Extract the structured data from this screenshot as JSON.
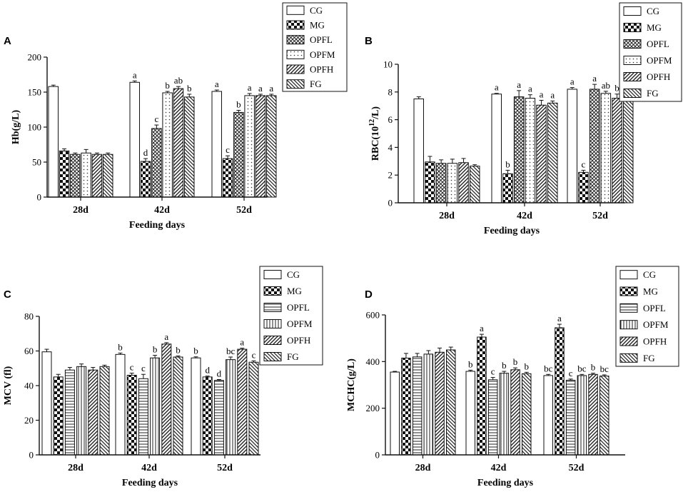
{
  "patterns": [
    "white",
    "checker",
    "crosshatch",
    "dots",
    "diag",
    "backdiag"
  ],
  "patterns_cd": [
    "white",
    "checker",
    "hlines",
    "vlines",
    "diag",
    "backdiag"
  ],
  "chart_data": [
    {
      "type": "bar",
      "panel": "A",
      "ylabel": "Hb(g/L)",
      "xlabel": "Feeding days",
      "categories": [
        "28d",
        "42d",
        "52d"
      ],
      "ylim": [
        0,
        200
      ],
      "yticks": [
        0,
        50,
        100,
        150,
        200
      ],
      "series": [
        {
          "name": "CG",
          "values": [
            158,
            164,
            151
          ],
          "errors": [
            2,
            2,
            2
          ],
          "sig": [
            "",
            "a",
            "a"
          ]
        },
        {
          "name": "MG",
          "values": [
            66,
            51,
            55
          ],
          "errors": [
            3,
            4,
            4
          ],
          "sig": [
            "",
            "d",
            "c"
          ]
        },
        {
          "name": "OPFL",
          "values": [
            61,
            98,
            121
          ],
          "errors": [
            2,
            5,
            3
          ],
          "sig": [
            "",
            "c",
            "b"
          ]
        },
        {
          "name": "OPFM",
          "values": [
            63,
            149,
            145
          ],
          "errors": [
            5,
            2,
            3
          ],
          "sig": [
            "",
            "b",
            "a"
          ]
        },
        {
          "name": "OPFH",
          "values": [
            61,
            155,
            145
          ],
          "errors": [
            2,
            3,
            2
          ],
          "sig": [
            "",
            "ab",
            "a"
          ]
        },
        {
          "name": "FG",
          "values": [
            61,
            143,
            145
          ],
          "errors": [
            2,
            4,
            2
          ],
          "sig": [
            "",
            "b",
            "a"
          ]
        }
      ]
    },
    {
      "type": "bar",
      "panel": "B",
      "ylabel": "RBC(10^12/L)",
      "ylabel_base": "RBC(10",
      "ylabel_sup": "12",
      "ylabel_tail": "/L)",
      "xlabel": "Feeding days",
      "categories": [
        "28d",
        "42d",
        "52d"
      ],
      "ylim": [
        0,
        10
      ],
      "yticks": [
        0,
        2,
        4,
        6,
        8,
        10
      ],
      "series": [
        {
          "name": "CG",
          "values": [
            7.5,
            7.85,
            8.2
          ],
          "errors": [
            0.15,
            0.05,
            0.12
          ],
          "sig": [
            "",
            "a",
            "a"
          ]
        },
        {
          "name": "MG",
          "values": [
            2.95,
            2.1,
            2.2
          ],
          "errors": [
            0.4,
            0.25,
            0.15
          ],
          "sig": [
            "",
            "b",
            "c"
          ]
        },
        {
          "name": "OPFL",
          "values": [
            2.85,
            7.65,
            8.2
          ],
          "errors": [
            0.25,
            0.45,
            0.35
          ],
          "sig": [
            "",
            "a",
            "a"
          ]
        },
        {
          "name": "OPFM",
          "values": [
            2.85,
            7.55,
            7.9
          ],
          "errors": [
            0.3,
            0.25,
            0.15
          ],
          "sig": [
            "",
            "a",
            "ab"
          ]
        },
        {
          "name": "OPFH",
          "values": [
            2.9,
            7.05,
            7.55
          ],
          "errors": [
            0.3,
            0.35,
            0.3
          ],
          "sig": [
            "",
            "a",
            "b"
          ]
        },
        {
          "name": "FG",
          "values": [
            2.65,
            7.2,
            8.05
          ],
          "errors": [
            0.1,
            0.15,
            0.15
          ],
          "sig": [
            "",
            "a",
            "a"
          ]
        }
      ]
    },
    {
      "type": "bar",
      "panel": "C",
      "ylabel": "MCV (fl)",
      "xlabel": "Feeding days",
      "categories": [
        "28d",
        "42d",
        "52d"
      ],
      "ylim": [
        0,
        80
      ],
      "yticks": [
        0,
        20,
        40,
        60,
        80
      ],
      "series": [
        {
          "name": "CG",
          "values": [
            59.5,
            58,
            56
          ],
          "errors": [
            1.5,
            0.8,
            0.6
          ],
          "sig": [
            "",
            "b",
            "b"
          ]
        },
        {
          "name": "MG",
          "values": [
            45,
            46,
            45
          ],
          "errors": [
            1.5,
            1.2,
            0.5
          ],
          "sig": [
            "",
            "c",
            "d"
          ]
        },
        {
          "name": "OPFL",
          "values": [
            49,
            44,
            43
          ],
          "errors": [
            1.5,
            2.5,
            0.5
          ],
          "sig": [
            "",
            "c",
            "d"
          ]
        },
        {
          "name": "OPFM",
          "values": [
            51,
            56,
            55
          ],
          "errors": [
            1.5,
            1.5,
            1.5
          ],
          "sig": [
            "",
            "b",
            "bc"
          ]
        },
        {
          "name": "OPFH",
          "values": [
            49,
            64,
            61
          ],
          "errors": [
            1.5,
            0.8,
            0.6
          ],
          "sig": [
            "",
            "a",
            "a"
          ]
        },
        {
          "name": "FG",
          "values": [
            51,
            56.5,
            53.5
          ],
          "errors": [
            0.8,
            0.6,
            0.8
          ],
          "sig": [
            "",
            "b",
            "c"
          ]
        }
      ]
    },
    {
      "type": "bar",
      "panel": "D",
      "ylabel": "MCHC(g/L)",
      "xlabel": "Feeding days",
      "categories": [
        "28d",
        "42d",
        "52d"
      ],
      "ylim": [
        0,
        600
      ],
      "yticks": [
        0,
        200,
        400,
        600
      ],
      "series": [
        {
          "name": "CG",
          "values": [
            355,
            358,
            340
          ],
          "errors": [
            3,
            5,
            5
          ],
          "sig": [
            "",
            "b",
            "bc"
          ]
        },
        {
          "name": "MG",
          "values": [
            415,
            505,
            545
          ],
          "errors": [
            20,
            12,
            15
          ],
          "sig": [
            "",
            "a",
            "a"
          ]
        },
        {
          "name": "OPFL",
          "values": [
            420,
            322,
            320
          ],
          "errors": [
            15,
            10,
            5
          ],
          "sig": [
            "",
            "c",
            "c"
          ]
        },
        {
          "name": "OPFM",
          "values": [
            432,
            350,
            340
          ],
          "errors": [
            15,
            8,
            5
          ],
          "sig": [
            "",
            "b",
            "bc"
          ]
        },
        {
          "name": "OPFH",
          "values": [
            440,
            365,
            345
          ],
          "errors": [
            18,
            8,
            5
          ],
          "sig": [
            "",
            "b",
            "b"
          ]
        },
        {
          "name": "FG",
          "values": [
            450,
            348,
            338
          ],
          "errors": [
            12,
            6,
            5
          ],
          "sig": [
            "",
            "b",
            "bc"
          ]
        }
      ]
    }
  ]
}
